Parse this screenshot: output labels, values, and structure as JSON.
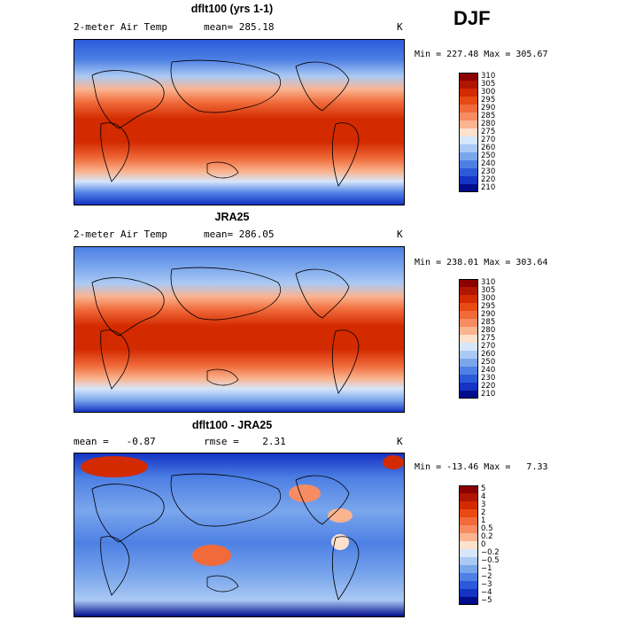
{
  "season": "DJF",
  "panels": [
    {
      "title": "dflt100 (yrs 1-1)",
      "left_label": "2-meter Air Temp",
      "mid_label": "mean= 285.18",
      "unit": "K",
      "minmax": "Min = 227.48 Max = 305.67",
      "levels": [
        "310",
        "305",
        "300",
        "295",
        "290",
        "285",
        "280",
        "275",
        "270",
        "260",
        "250",
        "240",
        "230",
        "220",
        "210"
      ],
      "colors": [
        "#8b0000",
        "#b01500",
        "#d32a00",
        "#e84a12",
        "#f06a3a",
        "#f78c63",
        "#fab490",
        "#fde1cc",
        "#d6e6fb",
        "#aac9f4",
        "#7aa6ec",
        "#4d80e4",
        "#2a5ad9",
        "#1533c4",
        "#000c8a"
      ]
    },
    {
      "title": "JRA25",
      "left_label": "2-meter Air Temp",
      "mid_label": "mean= 286.05",
      "unit": "K",
      "minmax": "Min = 238.01 Max = 303.64",
      "levels": [
        "310",
        "305",
        "300",
        "295",
        "290",
        "285",
        "280",
        "275",
        "270",
        "260",
        "250",
        "240",
        "230",
        "220",
        "210"
      ],
      "colors": [
        "#8b0000",
        "#b01500",
        "#d32a00",
        "#e84a12",
        "#f06a3a",
        "#f78c63",
        "#fab490",
        "#fde1cc",
        "#d6e6fb",
        "#aac9f4",
        "#7aa6ec",
        "#4d80e4",
        "#2a5ad9",
        "#1533c4",
        "#000c8a"
      ]
    },
    {
      "title": "dflt100 - JRA25",
      "left_label": "mean =   -0.87",
      "mid_label": "rmse =    2.31",
      "unit": "K",
      "minmax": "Min = -13.46 Max =   7.33",
      "levels": [
        "5",
        "4",
        "3",
        "2",
        "1",
        "0.5",
        "0.2",
        "0",
        "−0.2",
        "−0.5",
        "−1",
        "−2",
        "−3",
        "−4",
        "−5"
      ],
      "colors": [
        "#8b0000",
        "#b01500",
        "#d32a00",
        "#e84a12",
        "#f06a3a",
        "#f78c63",
        "#fab490",
        "#fde1cc",
        "#d6e6fb",
        "#aac9f4",
        "#7aa6ec",
        "#4d80e4",
        "#2a5ad9",
        "#1533c4",
        "#000c8a"
      ]
    }
  ]
}
